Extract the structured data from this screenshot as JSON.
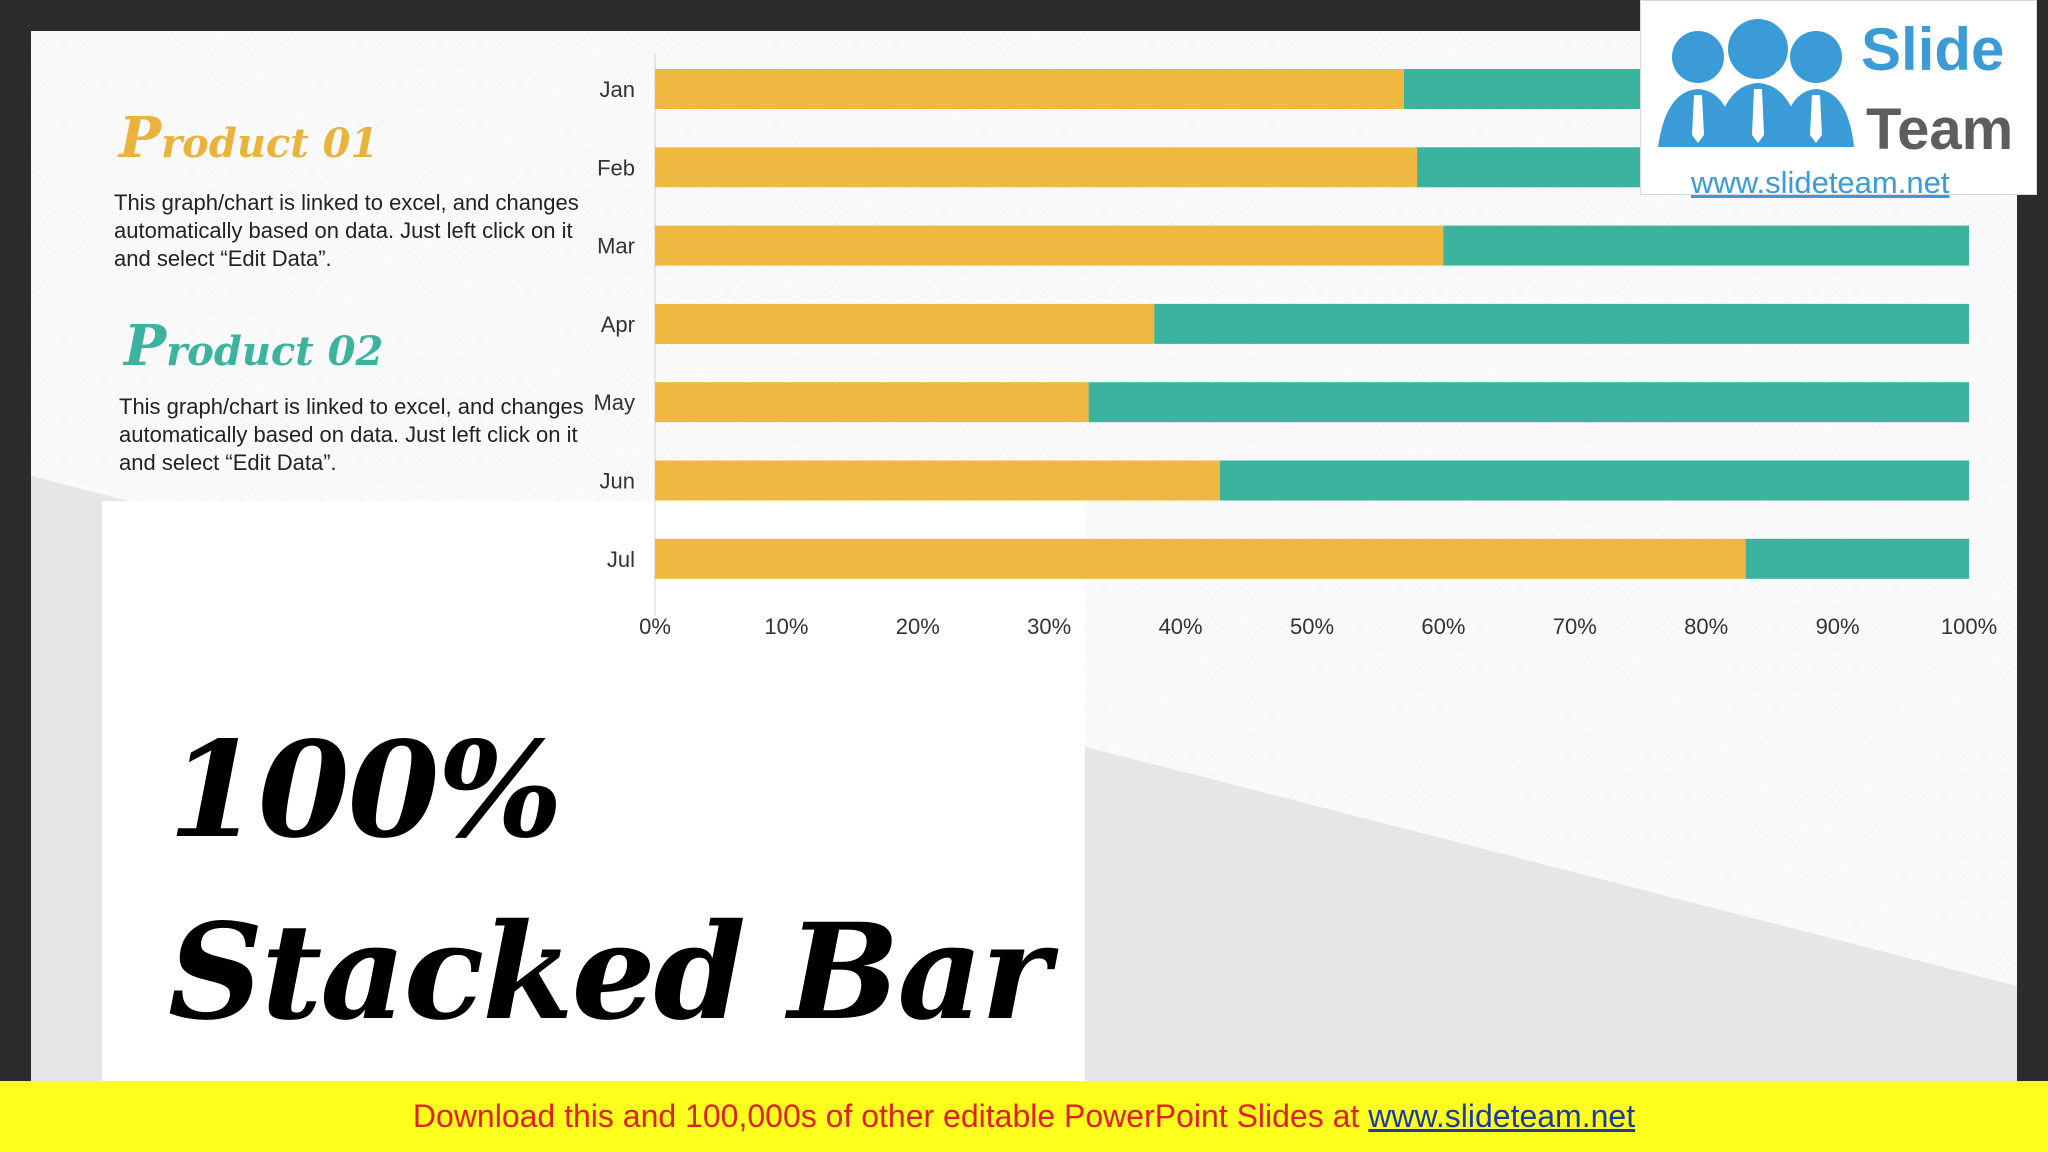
{
  "slide": {
    "title_line1": "100%",
    "title_line2": "Stacked Bar",
    "product1": {
      "cap": "P",
      "rest": "roduct 01",
      "description": "This graph/chart is linked to excel, and changes automatically based on data. Just left click on it and select “Edit Data”."
    },
    "product2": {
      "cap": "P",
      "rest": "roduct 02",
      "description": "This graph/chart is linked to excel, and changes automatically based on data. Just left click on it and select “Edit Data”."
    }
  },
  "logo": {
    "word1": "Slide",
    "word2": "Team",
    "url": "www.slideteam.net"
  },
  "footer": {
    "text": "Download this and 100,000s of other editable PowerPoint Slides at",
    "url": "www.slideteam.net"
  },
  "colors": {
    "product1": "#EFB941",
    "product2": "#3BB39F"
  },
  "chart_data": {
    "type": "bar",
    "orientation": "horizontal",
    "stacking": "percent",
    "categories": [
      "Jan",
      "Feb",
      "Mar",
      "Apr",
      "May",
      "Jun",
      "Jul"
    ],
    "series": [
      {
        "values": [
          57,
          58,
          60,
          38,
          33,
          43,
          83
        ]
      },
      {
        "values": [
          43,
          42,
          40,
          62,
          67,
          57,
          17
        ]
      }
    ],
    "xlim": [
      0,
      100
    ],
    "x_ticks": [
      "0%",
      "10%",
      "20%",
      "30%",
      "40%",
      "50%",
      "60%",
      "70%",
      "80%",
      "90%",
      "100%"
    ],
    "grid": false,
    "legend": "none"
  }
}
